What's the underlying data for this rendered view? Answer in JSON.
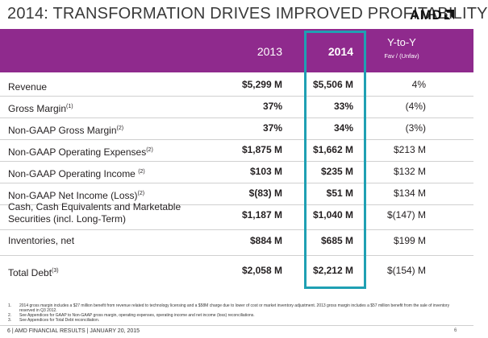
{
  "header": {
    "title": "2014: TRANSFORMATION DRIVES IMPROVED PROFITABILITY",
    "logo_text": "AMD",
    "logo_icon": "amd-arrow-icon",
    "accent_color": "#8f2a8d",
    "highlight_color": "#1fa0b3"
  },
  "columns": {
    "c2013": "2013",
    "c2014": "2014",
    "yty": "Y-to-Y",
    "yty_sub": "Fav / (Unfav)"
  },
  "rows": [
    {
      "label": "Revenue",
      "sup": "",
      "v2013": "$5,299 M",
      "v2014": "$5,506 M",
      "yty": "4%"
    },
    {
      "label": "Gross Margin",
      "sup": "(1)",
      "v2013": "37%",
      "v2014": "33%",
      "yty": "(4%)"
    },
    {
      "label": "Non-GAAP Gross Margin",
      "sup": "(2)",
      "v2013": "37%",
      "v2014": "34%",
      "yty": "(3%)"
    },
    {
      "label": "Non-GAAP Operating Expenses",
      "sup": "(2)",
      "v2013": "$1,875 M",
      "v2014": "$1,662 M",
      "yty": "$213 M"
    },
    {
      "label": "Non-GAAP Operating Income ",
      "sup": "(2)",
      "v2013": "$103 M",
      "v2014": "$235 M",
      "yty": "$132 M"
    },
    {
      "label": "Non-GAAP Net Income (Loss)",
      "sup": "(2)",
      "v2013": "$(83) M",
      "v2014": "$51 M",
      "yty": "$134 M"
    },
    {
      "label": "Cash, Cash Equivalents and Marketable",
      "label2": "Securities (incl. Long-Term)",
      "sup": "",
      "v2013": "$1,187 M",
      "v2014": "$1,040 M",
      "yty": "$(147) M"
    },
    {
      "label": "Inventories, net",
      "sup": "",
      "v2013": "$884 M",
      "v2014": "$685 M",
      "yty": "$199 M"
    },
    {
      "label": "Total Debt",
      "sup": "(3)",
      "v2013": "$2,058 M",
      "v2014": "$2,212 M",
      "yty": "$(154) M"
    }
  ],
  "notes": [
    {
      "num": "1.",
      "text": "2014 gross margin includes a $27 million benefit from revenue related to technology licensing and a $58M charge due to lower of cost or market inventory adjustment. 2013 gross margin includes a $57 million benefit from the sale of inventory reserved in Q3 2012."
    },
    {
      "num": "2.",
      "text": "See Appendices for GAAP to Non-GAAP gross margin, operating expenses, operating income and net income (loss) reconciliations."
    },
    {
      "num": "3.",
      "text": "See Appendices for Total Debt reconciliation."
    }
  ],
  "footer": {
    "text": "6  |  AMD FINANCIAL RESULTS  |  JANUARY 20, 2015",
    "page": "6"
  }
}
